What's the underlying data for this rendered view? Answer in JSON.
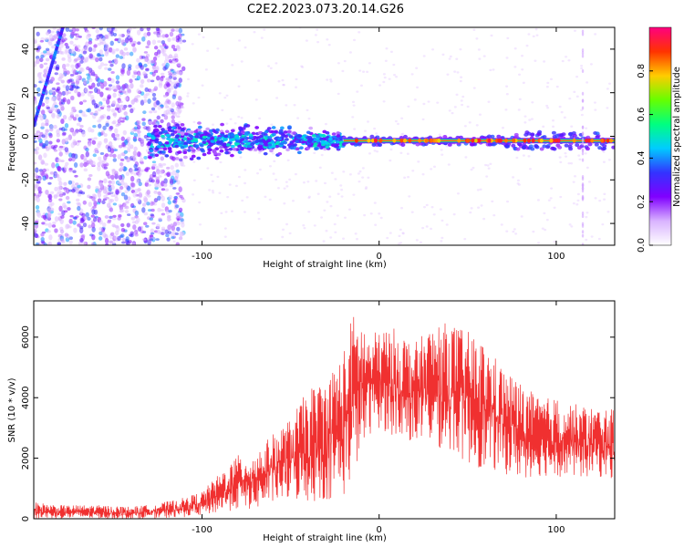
{
  "title": "C2E2.2023.073.20.14.G26",
  "chart_data": [
    {
      "type": "heatmap",
      "xlabel": "Height of straight line (km)",
      "ylabel": "Frequency (Hz)",
      "xlim": [
        -195,
        133
      ],
      "ylim": [
        -50,
        50
      ],
      "xticks": [
        -100,
        0,
        100
      ],
      "yticks": [
        -40,
        -20,
        0,
        20,
        40
      ],
      "grid": false,
      "colorbar": {
        "label": "Normalized spectral amplitude",
        "range": [
          0,
          1
        ],
        "ticks": [
          0.0,
          0.2,
          0.4,
          0.6,
          0.8
        ],
        "colormap": [
          "#ffffff",
          "#d9b3ff",
          "#8000ff",
          "#3333ff",
          "#00ccff",
          "#00ff80",
          "#66ff00",
          "#ffcc00",
          "#ff3300",
          "#ff0080"
        ]
      },
      "features": {
        "main_line_freq_hz": -2,
        "diffuse_region_x": [
          -195,
          -120
        ],
        "cluster_region_x": [
          -130,
          -20
        ],
        "stable_line_x": [
          -20,
          133
        ]
      }
    },
    {
      "type": "line",
      "xlabel": "Height of straight line (km)",
      "ylabel": "SNR (10 * v/v)",
      "xlim": [
        -195,
        133
      ],
      "ylim": [
        0,
        7200
      ],
      "xticks": [
        -100,
        0,
        100
      ],
      "yticks": [
        0,
        2000,
        4000,
        6000
      ],
      "grid": false,
      "series": [
        {
          "color": "#f03030",
          "x": [
            -195,
            -180,
            -160,
            -140,
            -125,
            -110,
            -100,
            -90,
            -80,
            -70,
            -60,
            -50,
            -40,
            -30,
            -20,
            -15,
            -10,
            -5,
            0,
            10,
            20,
            30,
            40,
            50,
            60,
            70,
            80,
            90,
            100,
            110,
            120,
            133
          ],
          "min": [
            0,
            0,
            0,
            0,
            0,
            50,
            100,
            200,
            300,
            300,
            500,
            600,
            500,
            600,
            700,
            1300,
            2200,
            2800,
            3000,
            2600,
            2500,
            2400,
            2200,
            1800,
            1600,
            1500,
            1300,
            1400,
            1400,
            1300,
            1400,
            1300
          ],
          "max": [
            550,
            450,
            450,
            400,
            500,
            700,
            900,
            1500,
            2100,
            2200,
            2800,
            3300,
            4300,
            4600,
            5600,
            6800,
            6600,
            6000,
            6300,
            6300,
            5800,
            6400,
            6500,
            6200,
            5800,
            5000,
            4500,
            4000,
            4000,
            3800,
            3700,
            3600
          ]
        }
      ]
    }
  ]
}
